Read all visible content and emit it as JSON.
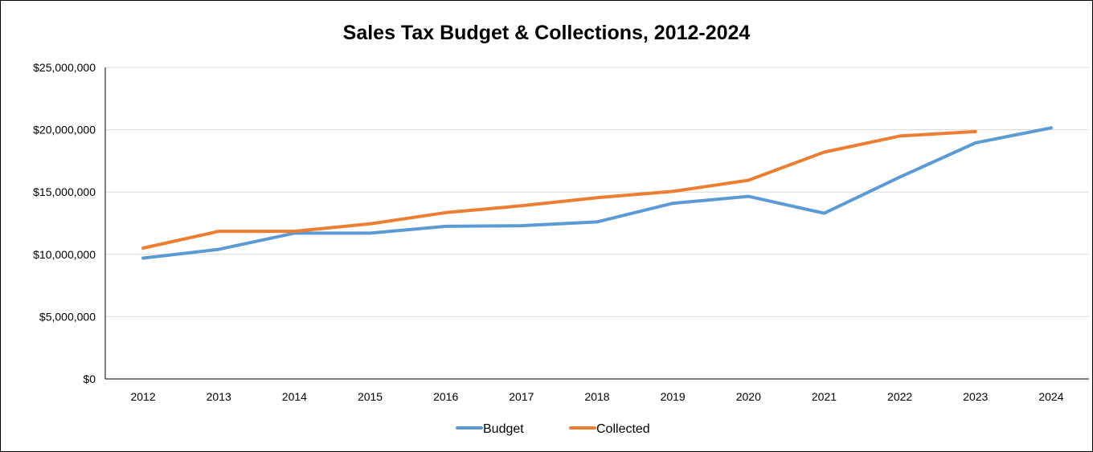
{
  "chart_data": {
    "type": "line",
    "title": "Sales Tax Budget & Collections, 2012-2024",
    "xlabel": "",
    "ylabel": "",
    "categories": [
      "2012",
      "2013",
      "2014",
      "2015",
      "2016",
      "2017",
      "2018",
      "2019",
      "2020",
      "2021",
      "2022",
      "2023",
      "2024"
    ],
    "ylim": [
      0,
      25000000
    ],
    "yticks": [
      0,
      5000000,
      10000000,
      15000000,
      20000000,
      25000000
    ],
    "ytick_labels": [
      "$0",
      "$5,000,000",
      "$10,000,000",
      "$15,000,000",
      "$20,000,000",
      "$25,000,000"
    ],
    "grid": "horizontal",
    "legend_position": "bottom",
    "series": [
      {
        "name": "Budget",
        "color": "#5B9BD5",
        "values": [
          9700000,
          10400000,
          11700000,
          11700000,
          12250000,
          12300000,
          12600000,
          14100000,
          14650000,
          13300000,
          16200000,
          18950000,
          20150000
        ]
      },
      {
        "name": "Collected",
        "color": "#ED7D31",
        "values": [
          10500000,
          11850000,
          11850000,
          12450000,
          13350000,
          13900000,
          14550000,
          15050000,
          15950000,
          18200000,
          19500000,
          19850000,
          null
        ]
      }
    ]
  }
}
